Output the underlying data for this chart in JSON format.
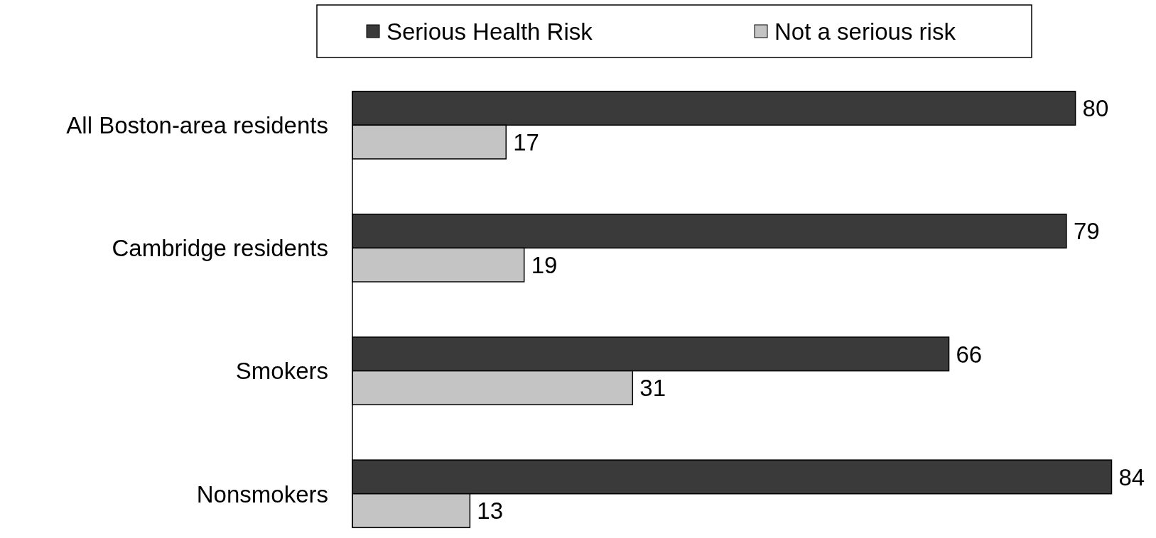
{
  "chart_data": {
    "type": "bar",
    "orientation": "horizontal",
    "categories": [
      "All Boston-area residents",
      "Cambridge residents",
      "Smokers",
      "Nonsmokers"
    ],
    "series": [
      {
        "name": "Serious Health Risk",
        "color": "#3a3a3a",
        "values": [
          80,
          79,
          66,
          84
        ]
      },
      {
        "name": "Not a serious risk",
        "color": "#c4c4c4",
        "values": [
          17,
          19,
          31,
          13
        ]
      }
    ],
    "data_labels": true,
    "legend": "top",
    "grid": false
  }
}
